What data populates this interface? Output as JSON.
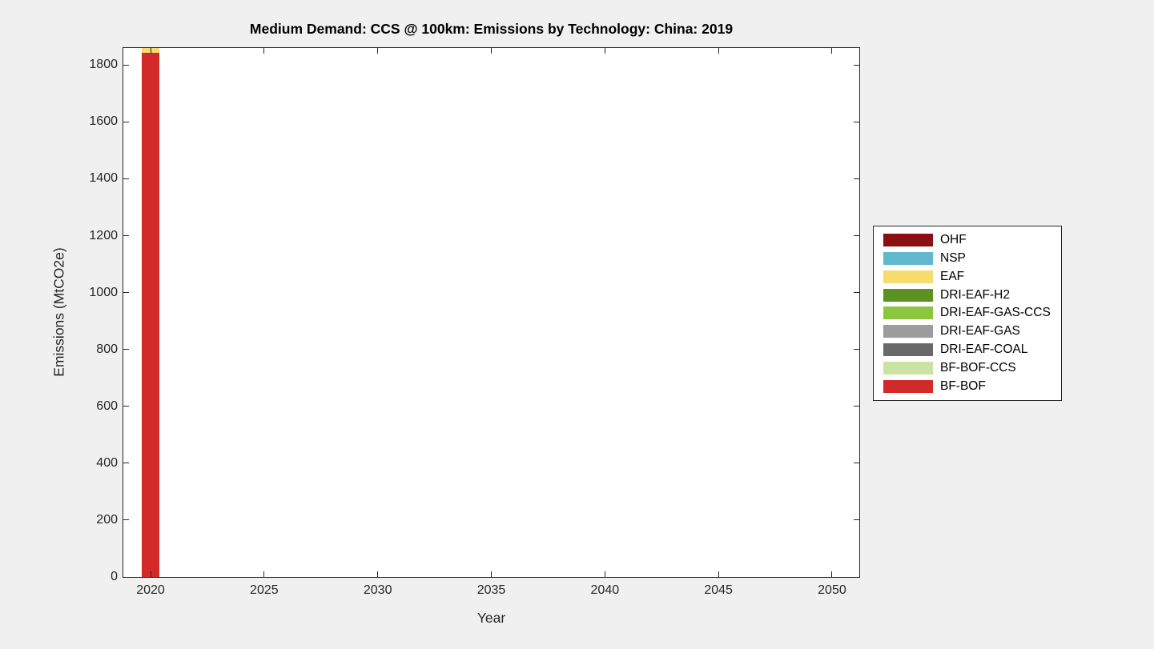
{
  "figure": {
    "background_color": "#F0F0F0",
    "plot_background_color": "#FFFFFF",
    "axis_color": "#262626"
  },
  "chart_data": {
    "type": "bar",
    "stacked": true,
    "title": "Medium Demand: CCS @ 100km: Emissions by Technology: China: 2019",
    "xlabel": "Year",
    "ylabel": "Emissions (MtCO2e)",
    "xlim": [
      2018.8,
      2051.2
    ],
    "ylim": [
      0,
      1860
    ],
    "xticks": [
      2020,
      2025,
      2030,
      2035,
      2040,
      2045,
      2050
    ],
    "yticks": [
      0,
      200,
      400,
      600,
      800,
      1000,
      1200,
      1400,
      1600,
      1800
    ],
    "x": [
      2020
    ],
    "bar_width_years": 0.75,
    "grid": false,
    "legend_position": "right-outside",
    "series": [
      {
        "name": "OHF",
        "color": "#8A0E12",
        "values": [
          0
        ]
      },
      {
        "name": "NSP",
        "color": "#62B9CD",
        "values": [
          0
        ]
      },
      {
        "name": "EAF",
        "color": "#F6DC6F",
        "values": [
          16
        ]
      },
      {
        "name": "DRI-EAF-H2",
        "color": "#5B9222",
        "values": [
          0
        ]
      },
      {
        "name": "DRI-EAF-GAS-CCS",
        "color": "#8CC63E",
        "values": [
          0
        ]
      },
      {
        "name": "DRI-EAF-GAS",
        "color": "#9C9C9C",
        "values": [
          0
        ]
      },
      {
        "name": "DRI-EAF-COAL",
        "color": "#696969",
        "values": [
          0
        ]
      },
      {
        "name": "BF-BOF-CCS",
        "color": "#C9E3A5",
        "values": [
          0
        ]
      },
      {
        "name": "BF-BOF",
        "color": "#D2292B",
        "values": [
          1844
        ]
      }
    ]
  }
}
